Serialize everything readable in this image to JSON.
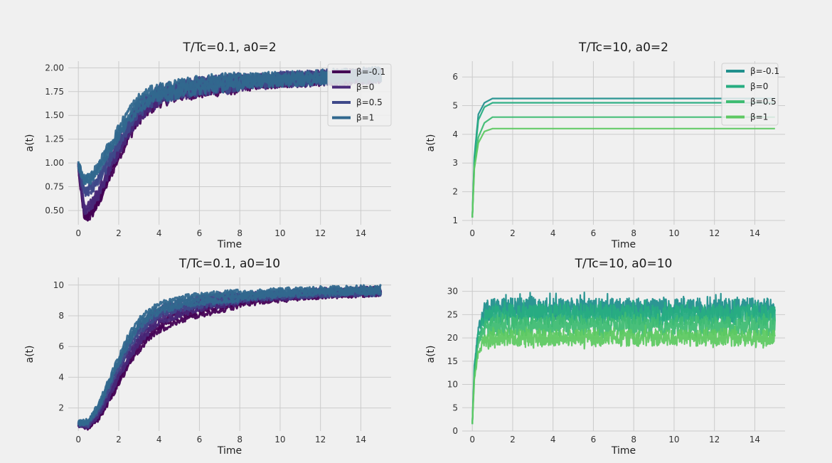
{
  "chart_data": [
    {
      "type": "line",
      "title": "T/Tc=0.1, a0=2",
      "xlabel": "Time",
      "ylabel": "a(t)",
      "xlim": [
        -0.5,
        15.5
      ],
      "ylim": [
        0.35,
        2.07
      ],
      "xticks": [
        0,
        2,
        4,
        6,
        8,
        10,
        12,
        14
      ],
      "yticks": [
        0.5,
        0.75,
        1.0,
        1.25,
        1.5,
        1.75,
        2.0
      ],
      "ytick_labels": [
        "0.50",
        "0.75",
        "1.00",
        "1.25",
        "1.50",
        "1.75",
        "2.00"
      ],
      "legend_position": "top-right",
      "series": [
        {
          "name": "β=-0.1",
          "color": "#440154",
          "values": [
            [
              0,
              0.95
            ],
            [
              0.3,
              0.42
            ],
            [
              0.6,
              0.45
            ],
            [
              1,
              0.6
            ],
            [
              1.5,
              0.85
            ],
            [
              2,
              1.1
            ],
            [
              2.5,
              1.32
            ],
            [
              3,
              1.5
            ],
            [
              3.5,
              1.6
            ],
            [
              4,
              1.68
            ],
            [
              5,
              1.75
            ],
            [
              6,
              1.78
            ],
            [
              8,
              1.83
            ],
            [
              10,
              1.87
            ],
            [
              12,
              1.89
            ],
            [
              15,
              1.92
            ]
          ]
        },
        {
          "name": "β=0",
          "color": "#482878",
          "values": [
            [
              0,
              0.95
            ],
            [
              0.3,
              0.5
            ],
            [
              0.6,
              0.55
            ],
            [
              1,
              0.68
            ],
            [
              1.5,
              0.92
            ],
            [
              2,
              1.15
            ],
            [
              2.5,
              1.36
            ],
            [
              3,
              1.52
            ],
            [
              3.5,
              1.62
            ],
            [
              4,
              1.7
            ],
            [
              5,
              1.76
            ],
            [
              6,
              1.8
            ],
            [
              8,
              1.84
            ],
            [
              10,
              1.87
            ],
            [
              12,
              1.89
            ],
            [
              15,
              1.92
            ]
          ]
        },
        {
          "name": "β=0.5",
          "color": "#3e4989",
          "values": [
            [
              0,
              0.97
            ],
            [
              0.3,
              0.7
            ],
            [
              0.6,
              0.72
            ],
            [
              1,
              0.82
            ],
            [
              1.5,
              1.02
            ],
            [
              2,
              1.22
            ],
            [
              2.5,
              1.42
            ],
            [
              3,
              1.57
            ],
            [
              3.5,
              1.67
            ],
            [
              4,
              1.72
            ],
            [
              5,
              1.77
            ],
            [
              6,
              1.81
            ],
            [
              8,
              1.85
            ],
            [
              10,
              1.88
            ],
            [
              12,
              1.9
            ],
            [
              15,
              1.92
            ]
          ]
        },
        {
          "name": "β=1",
          "color": "#31688e",
          "values": [
            [
              0,
              0.98
            ],
            [
              0.3,
              0.82
            ],
            [
              0.6,
              0.84
            ],
            [
              1,
              0.95
            ],
            [
              1.5,
              1.15
            ],
            [
              2,
              1.32
            ],
            [
              2.5,
              1.5
            ],
            [
              3,
              1.63
            ],
            [
              3.5,
              1.7
            ],
            [
              4,
              1.74
            ],
            [
              5,
              1.78
            ],
            [
              6,
              1.82
            ],
            [
              8,
              1.86
            ],
            [
              10,
              1.88
            ],
            [
              12,
              1.9
            ],
            [
              15,
              1.93
            ]
          ]
        }
      ]
    },
    {
      "type": "line",
      "title": "T/Tc=10, a0=2",
      "xlabel": "Time",
      "ylabel": "a(t)",
      "xlim": [
        -0.5,
        15.5
      ],
      "ylim": [
        0.85,
        6.55
      ],
      "xticks": [
        0,
        2,
        4,
        6,
        8,
        10,
        12,
        14
      ],
      "yticks": [
        1,
        2,
        3,
        4,
        5,
        6
      ],
      "ytick_labels": [
        "1",
        "2",
        "3",
        "4",
        "5",
        "6"
      ],
      "legend_position": "top-right",
      "series": [
        {
          "name": "β=-0.1",
          "color": "#21908d",
          "values": [
            [
              0,
              1.1
            ],
            [
              0.1,
              3.2
            ],
            [
              0.3,
              4.7
            ],
            [
              0.6,
              5.1
            ],
            [
              1,
              5.25
            ],
            [
              15,
              5.25
            ]
          ]
        },
        {
          "name": "β=0",
          "color": "#27ad81",
          "values": [
            [
              0,
              1.1
            ],
            [
              0.1,
              3.1
            ],
            [
              0.3,
              4.5
            ],
            [
              0.6,
              4.95
            ],
            [
              1,
              5.1
            ],
            [
              15,
              5.1
            ]
          ]
        },
        {
          "name": "β=0.5",
          "color": "#3fbc73",
          "values": [
            [
              0,
              1.1
            ],
            [
              0.1,
              2.9
            ],
            [
              0.3,
              3.9
            ],
            [
              0.6,
              4.4
            ],
            [
              1,
              4.6
            ],
            [
              15,
              4.6
            ]
          ]
        },
        {
          "name": "β=1",
          "color": "#5ec962",
          "values": [
            [
              0,
              1.1
            ],
            [
              0.1,
              2.8
            ],
            [
              0.3,
              3.7
            ],
            [
              0.6,
              4.1
            ],
            [
              1,
              4.2
            ],
            [
              15,
              4.2
            ]
          ]
        }
      ]
    },
    {
      "type": "line",
      "title": "T/Tc=0.1, a0=10",
      "xlabel": "Time",
      "ylabel": "a(t)",
      "xlim": [
        -0.5,
        15.5
      ],
      "ylim": [
        0.5,
        10.5
      ],
      "xticks": [
        0,
        2,
        4,
        6,
        8,
        10,
        12,
        14
      ],
      "yticks": [
        2,
        4,
        6,
        8,
        10
      ],
      "ytick_labels": [
        "2",
        "4",
        "6",
        "8",
        "10"
      ],
      "series": [
        {
          "name": "β=-0.1",
          "color": "#440154",
          "values": [
            [
              0,
              0.9
            ],
            [
              0.5,
              0.8
            ],
            [
              1,
              1.4
            ],
            [
              1.5,
              2.5
            ],
            [
              2,
              3.8
            ],
            [
              2.5,
              5.0
            ],
            [
              3,
              6.0
            ],
            [
              3.5,
              6.8
            ],
            [
              4,
              7.3
            ],
            [
              5,
              7.9
            ],
            [
              6,
              8.3
            ],
            [
              7,
              8.6
            ],
            [
              8,
              8.9
            ],
            [
              10,
              9.2
            ],
            [
              12,
              9.4
            ],
            [
              15,
              9.6
            ]
          ]
        },
        {
          "name": "β=0",
          "color": "#482878",
          "values": [
            [
              0,
              0.9
            ],
            [
              0.5,
              0.85
            ],
            [
              1,
              1.6
            ],
            [
              1.5,
              2.8
            ],
            [
              2,
              4.2
            ],
            [
              2.5,
              5.4
            ],
            [
              3,
              6.4
            ],
            [
              3.5,
              7.2
            ],
            [
              4,
              7.8
            ],
            [
              5,
              8.3
            ],
            [
              6,
              8.7
            ],
            [
              7,
              8.9
            ],
            [
              8,
              9.1
            ],
            [
              10,
              9.3
            ],
            [
              12,
              9.5
            ],
            [
              15,
              9.6
            ]
          ]
        },
        {
          "name": "β=0.5",
          "color": "#3e4989",
          "values": [
            [
              0,
              1.0
            ],
            [
              0.5,
              0.95
            ],
            [
              1,
              1.9
            ],
            [
              1.5,
              3.3
            ],
            [
              2,
              4.8
            ],
            [
              2.5,
              6.1
            ],
            [
              3,
              7.1
            ],
            [
              3.5,
              7.8
            ],
            [
              4,
              8.3
            ],
            [
              5,
              8.7
            ],
            [
              6,
              8.9
            ],
            [
              7,
              9.1
            ],
            [
              8,
              9.2
            ],
            [
              10,
              9.4
            ],
            [
              12,
              9.5
            ],
            [
              15,
              9.6
            ]
          ]
        },
        {
          "name": "β=1",
          "color": "#31688e",
          "values": [
            [
              0,
              1.0
            ],
            [
              0.5,
              1.1
            ],
            [
              1,
              2.1
            ],
            [
              1.5,
              3.6
            ],
            [
              2,
              5.1
            ],
            [
              2.5,
              6.5
            ],
            [
              3,
              7.5
            ],
            [
              3.5,
              8.1
            ],
            [
              4,
              8.5
            ],
            [
              5,
              8.9
            ],
            [
              6,
              9.1
            ],
            [
              7,
              9.2
            ],
            [
              8,
              9.3
            ],
            [
              10,
              9.5
            ],
            [
              12,
              9.6
            ],
            [
              15,
              9.7
            ]
          ]
        }
      ]
    },
    {
      "type": "line",
      "title": "T/Tc=10, a0=10",
      "xlabel": "Time",
      "ylabel": "a(t)",
      "xlim": [
        -0.5,
        15.5
      ],
      "ylim": [
        0,
        33
      ],
      "xticks": [
        0,
        2,
        4,
        6,
        8,
        10,
        12,
        14
      ],
      "yticks": [
        0,
        5,
        10,
        15,
        20,
        25,
        30
      ],
      "ytick_labels": [
        "0",
        "5",
        "10",
        "15",
        "20",
        "25",
        "30"
      ],
      "series": [
        {
          "name": "β=-0.1",
          "color": "#21908d",
          "values": [
            [
              0,
              1.5
            ],
            [
              0.1,
              14
            ],
            [
              0.3,
              22
            ],
            [
              0.6,
              25.5
            ],
            [
              1,
              26.2
            ],
            [
              15,
              26.2
            ]
          ]
        },
        {
          "name": "β=0",
          "color": "#27ad81",
          "values": [
            [
              0,
              1.5
            ],
            [
              0.1,
              13
            ],
            [
              0.3,
              21
            ],
            [
              0.6,
              24.3
            ],
            [
              1,
              25
            ],
            [
              15,
              25
            ]
          ]
        },
        {
          "name": "β=0.5",
          "color": "#3fbc73",
          "values": [
            [
              0,
              1.5
            ],
            [
              0.1,
              12
            ],
            [
              0.3,
              19
            ],
            [
              0.6,
              22
            ],
            [
              1,
              22.5
            ],
            [
              15,
              22.5
            ]
          ]
        },
        {
          "name": "β=1",
          "color": "#5ec962",
          "values": [
            [
              0,
              1.5
            ],
            [
              0.1,
              11
            ],
            [
              0.3,
              17
            ],
            [
              0.6,
              19.5
            ],
            [
              1,
              20
            ],
            [
              15,
              20
            ]
          ]
        }
      ]
    }
  ]
}
